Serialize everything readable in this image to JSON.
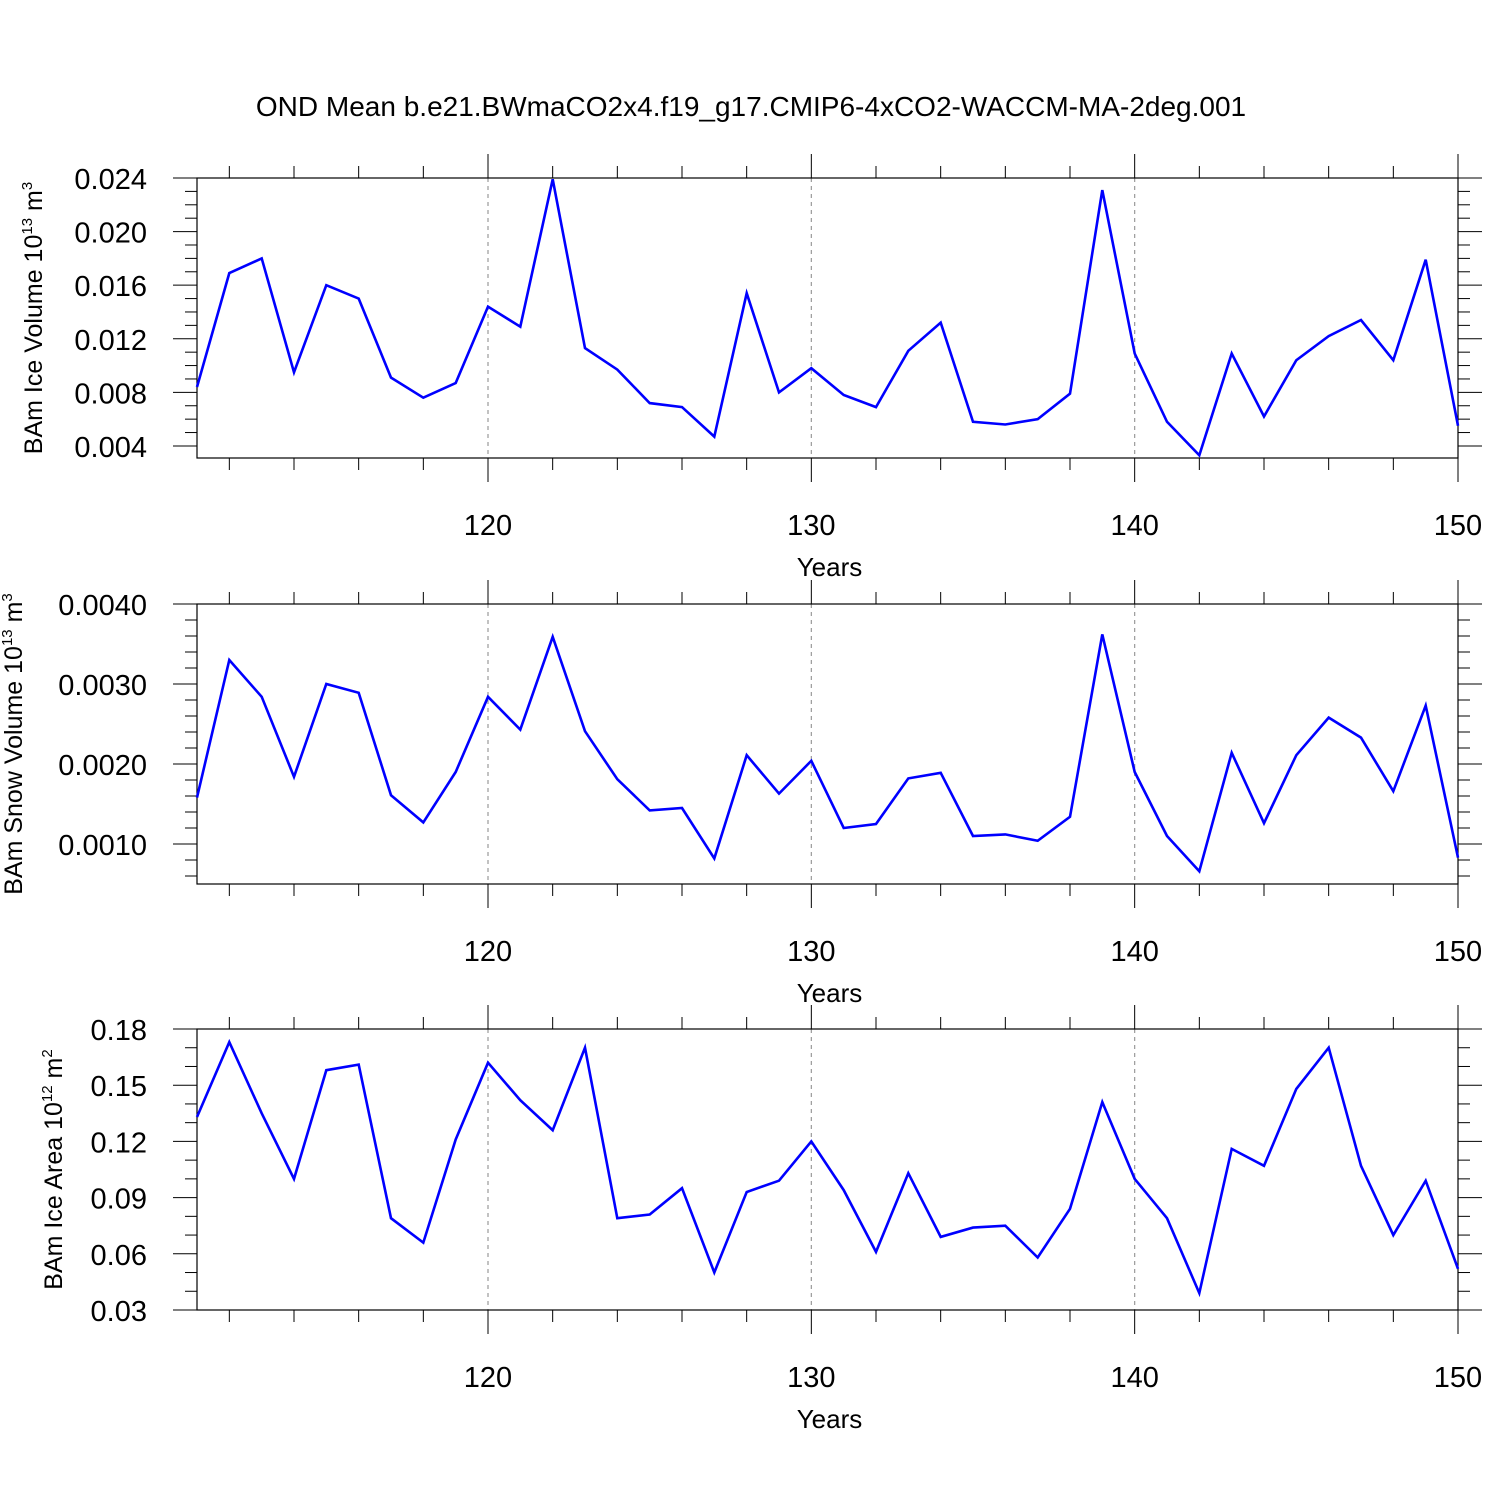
{
  "chart_data": {
    "title": "OND Mean b.e21.BWmaCO2x4.f19_g17.CMIP6-4xCO2-WACCM-MA-2deg.001",
    "panels": [
      {
        "type": "line",
        "ylabel_text": "BAm Ice Volume 10",
        "ylabel_exp": "13",
        "ylabel_unit": "m",
        "ylabel_unit_exp": "3",
        "xlabel": "Years",
        "xlim": [
          111,
          150
        ],
        "ylim": [
          0.0031,
          0.024
        ],
        "xticks": [
          120,
          130,
          140,
          150
        ],
        "xtick_labels": [
          "120",
          "130",
          "140",
          "150"
        ],
        "yticks": [
          0.004,
          0.008,
          0.012,
          0.016,
          0.02,
          0.024
        ],
        "ytick_labels": [
          "0.004",
          "0.008",
          "0.012",
          "0.016",
          "0.020",
          "0.024"
        ],
        "yminor_step": 0.001,
        "x": [
          111,
          112,
          113,
          114,
          115,
          116,
          117,
          118,
          119,
          120,
          121,
          122,
          123,
          124,
          125,
          126,
          127,
          128,
          129,
          130,
          131,
          132,
          133,
          134,
          135,
          136,
          137,
          138,
          139,
          140,
          141,
          142,
          143,
          144,
          145,
          146,
          147,
          148,
          149,
          150
        ],
        "values": [
          0.0084,
          0.0169,
          0.018,
          0.0095,
          0.016,
          0.015,
          0.0091,
          0.0076,
          0.0087,
          0.0144,
          0.0129,
          0.0239,
          0.0113,
          0.0097,
          0.0072,
          0.0069,
          0.0047,
          0.0154,
          0.008,
          0.0098,
          0.0078,
          0.0069,
          0.0111,
          0.0132,
          0.0058,
          0.0056,
          0.006,
          0.0079,
          0.0231,
          0.0109,
          0.0058,
          0.0033,
          0.0109,
          0.0062,
          0.0104,
          0.0122,
          0.0134,
          0.0104,
          0.0179,
          0.0055
        ],
        "color": "#0000ff",
        "grid": "dashed vertical at major x ticks"
      },
      {
        "type": "line",
        "ylabel_text": "BAm Snow Volume 10",
        "ylabel_exp": "13",
        "ylabel_unit": "m",
        "ylabel_unit_exp": "3",
        "xlabel": "Years",
        "xlim": [
          111,
          150
        ],
        "ylim": [
          0.0005,
          0.004
        ],
        "xticks": [
          120,
          130,
          140,
          150
        ],
        "xtick_labels": [
          "120",
          "130",
          "140",
          "150"
        ],
        "yticks": [
          0.001,
          0.002,
          0.003,
          0.004
        ],
        "ytick_labels": [
          "0.0010",
          "0.0020",
          "0.0030",
          "0.0040"
        ],
        "yminor_step": 0.0002,
        "x": [
          111,
          112,
          113,
          114,
          115,
          116,
          117,
          118,
          119,
          120,
          121,
          122,
          123,
          124,
          125,
          126,
          127,
          128,
          129,
          130,
          131,
          132,
          133,
          134,
          135,
          136,
          137,
          138,
          139,
          140,
          141,
          142,
          143,
          144,
          145,
          146,
          147,
          148,
          149,
          150
        ],
        "values": [
          0.00158,
          0.0033,
          0.00284,
          0.00184,
          0.003,
          0.00289,
          0.00161,
          0.00127,
          0.0019,
          0.00284,
          0.00243,
          0.00359,
          0.00241,
          0.00181,
          0.00142,
          0.00145,
          0.00082,
          0.00211,
          0.00163,
          0.00204,
          0.0012,
          0.00125,
          0.00182,
          0.00189,
          0.0011,
          0.00112,
          0.00104,
          0.00134,
          0.00362,
          0.0019,
          0.0011,
          0.00066,
          0.00214,
          0.00126,
          0.00211,
          0.00258,
          0.00233,
          0.00166,
          0.00273,
          0.00083
        ],
        "color": "#0000ff",
        "grid": "dashed vertical at major x ticks"
      },
      {
        "type": "line",
        "ylabel_text": "BAm Ice Area 10",
        "ylabel_exp": "12",
        "ylabel_unit": "m",
        "ylabel_unit_exp": "2",
        "xlabel": "Years",
        "xlim": [
          111,
          150
        ],
        "ylim": [
          0.03,
          0.18
        ],
        "xticks": [
          120,
          130,
          140,
          150
        ],
        "xtick_labels": [
          "120",
          "130",
          "140",
          "150"
        ],
        "yticks": [
          0.03,
          0.06,
          0.09,
          0.12,
          0.15,
          0.18
        ],
        "ytick_labels": [
          "0.03",
          "0.06",
          "0.09",
          "0.12",
          "0.15",
          "0.18"
        ],
        "yminor_step": 0.01,
        "x": [
          111,
          112,
          113,
          114,
          115,
          116,
          117,
          118,
          119,
          120,
          121,
          122,
          123,
          124,
          125,
          126,
          127,
          128,
          129,
          130,
          131,
          132,
          133,
          134,
          135,
          136,
          137,
          138,
          139,
          140,
          141,
          142,
          143,
          144,
          145,
          146,
          147,
          148,
          149,
          150
        ],
        "values": [
          0.133,
          0.173,
          0.135,
          0.1,
          0.158,
          0.161,
          0.079,
          0.066,
          0.121,
          0.162,
          0.142,
          0.126,
          0.17,
          0.079,
          0.081,
          0.095,
          0.05,
          0.093,
          0.099,
          0.12,
          0.094,
          0.061,
          0.103,
          0.069,
          0.074,
          0.075,
          0.058,
          0.084,
          0.141,
          0.1,
          0.079,
          0.039,
          0.116,
          0.107,
          0.148,
          0.17,
          0.107,
          0.07,
          0.099,
          0.052
        ],
        "color": "#0000ff",
        "grid": "dashed vertical at major x ticks"
      }
    ]
  }
}
